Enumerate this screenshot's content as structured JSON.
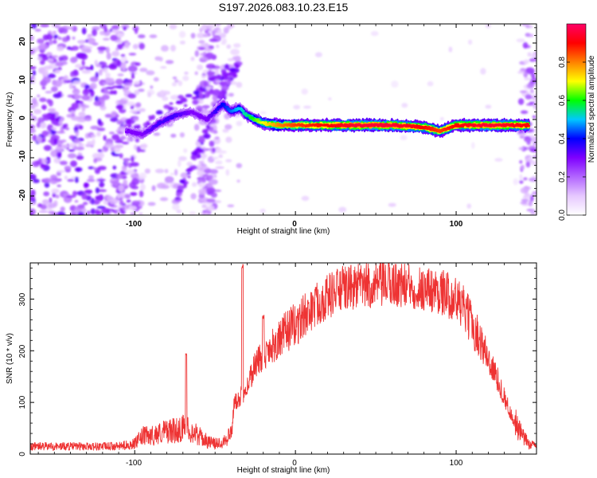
{
  "chart_data": [
    {
      "type": "heatmap",
      "title": "S197.2026.083.10.23.E15",
      "xlabel": "Height of straight line (km)",
      "ylabel": "Frequency (Hz)",
      "xlim": [
        -165,
        150
      ],
      "ylim": [
        -25,
        25
      ],
      "xticks": [
        -100,
        0,
        100
      ],
      "xtick_labels": [
        "-100",
        "0",
        "100"
      ],
      "yticks": [
        -20,
        -10,
        0,
        10,
        20
      ],
      "ytick_labels": [
        "-20",
        "-10",
        "0",
        "10",
        "20"
      ],
      "colorbar": {
        "label": "Normalized spectral amplitude",
        "range": [
          0,
          1
        ],
        "ticks": [
          0.0,
          0.2,
          0.4,
          0.6,
          0.8
        ],
        "tick_labels": [
          "0.0",
          "0.2",
          "0.4",
          "0.6",
          "0.8"
        ],
        "colors": [
          "#ffffff",
          "#e6c8ff",
          "#b266ff",
          "#7f00ff",
          "#0000ff",
          "#00c8ff",
          "#00ff00",
          "#ffff00",
          "#ff8000",
          "#ff0000",
          "#ff0066"
        ]
      },
      "ridge": {
        "x": [
          -105,
          -95,
          -85,
          -75,
          -65,
          -55,
          -45,
          -40,
          -35,
          -30,
          -20,
          -10,
          0,
          20,
          40,
          60,
          80,
          90,
          100,
          120,
          145
        ],
        "frequency": [
          -3,
          -4,
          -1,
          1,
          2,
          0,
          4,
          2,
          3,
          1,
          -1,
          -1.5,
          -1.5,
          -1.5,
          -1.5,
          -1.5,
          -2,
          -3,
          -1.5,
          -1.5,
          -1.5
        ],
        "amplitude": [
          0.3,
          0.3,
          0.35,
          0.35,
          0.3,
          0.3,
          0.4,
          0.45,
          0.5,
          0.55,
          0.7,
          0.8,
          0.85,
          0.9,
          0.95,
          0.95,
          0.9,
          0.85,
          0.9,
          0.95,
          0.9
        ]
      }
    },
    {
      "type": "line",
      "title": "",
      "xlabel": "Height of straight line (km)",
      "ylabel": "SNR (10 * v/v)",
      "xlim": [
        -165,
        150
      ],
      "ylim": [
        0,
        370
      ],
      "xticks": [
        -100,
        0,
        100
      ],
      "xtick_labels": [
        "-100",
        "0",
        "100"
      ],
      "yticks": [
        0,
        100,
        200,
        300
      ],
      "ytick_labels": [
        "0",
        "100",
        "200",
        "300"
      ],
      "series": [
        {
          "name": "SNR",
          "color": "#ee3333",
          "x": [
            -165,
            -150,
            -130,
            -110,
            -100,
            -95,
            -90,
            -85,
            -80,
            -75,
            -70,
            -65,
            -60,
            -55,
            -50,
            -45,
            -40,
            -38,
            -35,
            -32,
            -30,
            -28,
            -25,
            -20,
            -15,
            -10,
            -5,
            0,
            5,
            10,
            15,
            20,
            25,
            30,
            40,
            50,
            60,
            70,
            80,
            90,
            100,
            105,
            110,
            115,
            120,
            125,
            130,
            135,
            140,
            145,
            150
          ],
          "y": [
            15,
            15,
            15,
            15,
            20,
            35,
            35,
            40,
            45,
            45,
            50,
            45,
            35,
            25,
            20,
            25,
            40,
            100,
            110,
            120,
            130,
            150,
            175,
            190,
            210,
            220,
            240,
            250,
            265,
            280,
            295,
            305,
            315,
            320,
            325,
            325,
            330,
            325,
            320,
            315,
            300,
            280,
            250,
            220,
            185,
            150,
            110,
            70,
            40,
            20,
            15
          ]
        }
      ],
      "annotations": [
        {
          "x": -68,
          "y": 195
        },
        {
          "x": -33,
          "y": 370
        },
        {
          "x": -20,
          "y": 270
        },
        {
          "x": 8,
          "y": 300
        }
      ]
    }
  ]
}
